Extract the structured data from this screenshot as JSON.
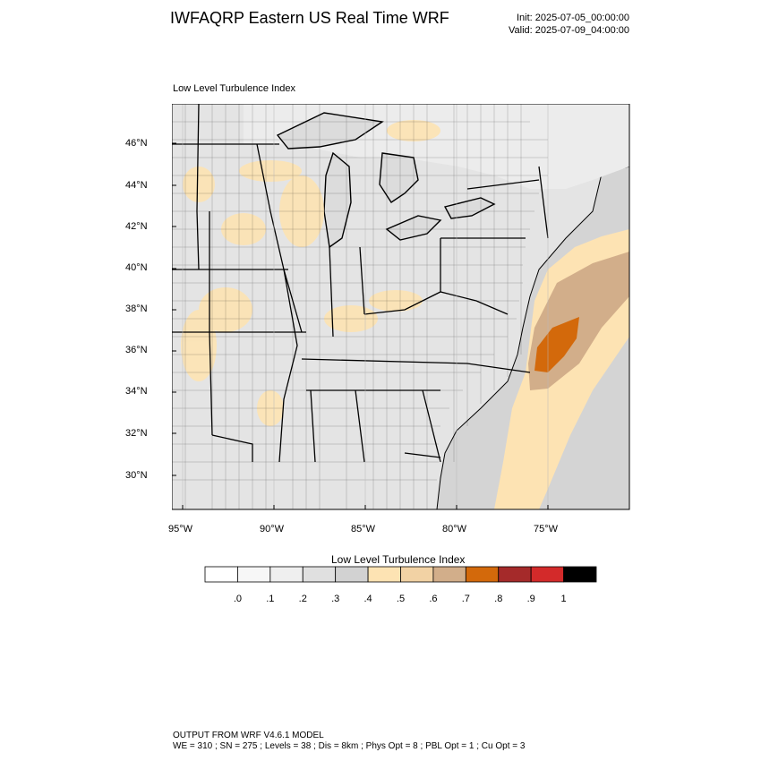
{
  "header": {
    "title": "IWFAQRP Eastern US Real Time WRF",
    "init": "Init: 2025-07-05_00:00:00",
    "valid": "Valid: 2025-07-09_04:00:00"
  },
  "map": {
    "subtitle": "Low Level Turbulence Index",
    "lat_labels": [
      "46°N",
      "44°N",
      "42°N",
      "40°N",
      "38°N",
      "36°N",
      "34°N",
      "32°N",
      "30°N"
    ],
    "lon_labels": [
      "95°W",
      "90°W",
      "85°W",
      "80°W",
      "75°W"
    ],
    "colors": {
      "ocean": "#d4d4d4",
      "land": "#e3e3e3",
      "lake": "#dedede",
      "light_orange": "#fde3b3",
      "tan": "#d2ae8a",
      "orange": "#d3690b",
      "borders": "#000000"
    }
  },
  "colorbar": {
    "title": "Low Level Turbulence Index",
    "colors": [
      "#ffffff",
      "#f7f7f7",
      "#efefef",
      "#e0e0e0",
      "#d2d2d2",
      "#fde3b3",
      "#f2d2a4",
      "#d2ae8a",
      "#d3690b",
      "#a52a2a",
      "#d32a2a",
      "#000000"
    ],
    "labels": [
      ".0",
      ".1",
      ".2",
      ".3",
      ".4",
      ".5",
      ".6",
      ".7",
      ".8",
      ".9",
      "1"
    ]
  },
  "footer": {
    "line1": "OUTPUT FROM WRF V4.6.1 MODEL",
    "line2": "WE = 310 ; SN = 275 ; Levels = 38 ; Dis = 8km ; Phys Opt = 8 ; PBL Opt = 1 ; Cu Opt = 3"
  }
}
